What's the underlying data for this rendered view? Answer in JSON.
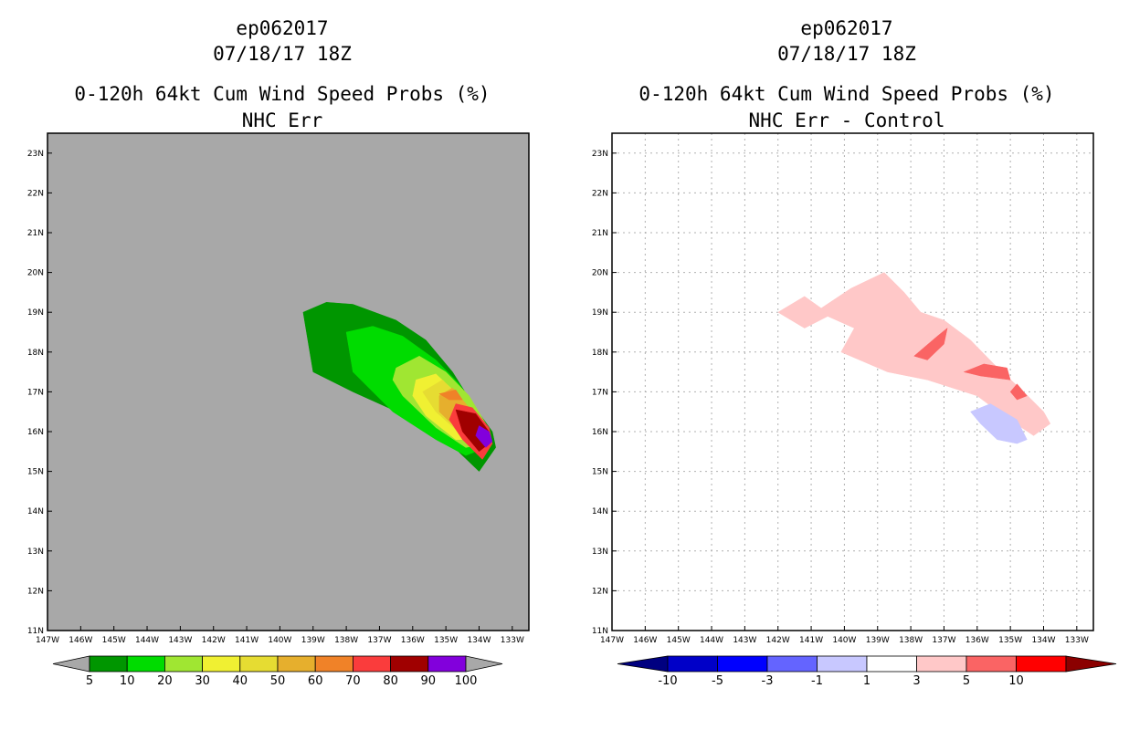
{
  "panels": [
    {
      "storm": "ep062017",
      "datetime": "07/18/17 18Z",
      "title": "0-120h 64kt Cum Wind Speed Probs (%)",
      "subtitle": "NHC Err"
    },
    {
      "storm": "ep062017",
      "datetime": "07/18/17 18Z",
      "title": "0-120h 64kt Cum Wind Speed Probs (%)",
      "subtitle": "NHC Err - Control"
    }
  ],
  "chart_data": [
    {
      "type": "filled-contour",
      "title": "0-120h 64kt Cum Wind Speed Probs (%)",
      "subtitle": "NHC Err",
      "background": "#a8a8a8",
      "grid": false,
      "xlim": [
        -147,
        -132.5
      ],
      "ylim": [
        11,
        23.5
      ],
      "x_ticks": [
        -147,
        -146,
        -145,
        -144,
        -143,
        -142,
        -141,
        -140,
        -139,
        -138,
        -137,
        -136,
        -135,
        -134,
        -133
      ],
      "x_tick_labels": [
        "147W",
        "146W",
        "145W",
        "144W",
        "143W",
        "142W",
        "141W",
        "140W",
        "139W",
        "138W",
        "137W",
        "136W",
        "135W",
        "134W",
        "133W"
      ],
      "y_ticks": [
        11,
        12,
        13,
        14,
        15,
        16,
        17,
        18,
        19,
        20,
        21,
        22,
        23
      ],
      "y_tick_labels": [
        "11N",
        "12N",
        "13N",
        "14N",
        "15N",
        "16N",
        "17N",
        "18N",
        "19N",
        "20N",
        "21N",
        "22N",
        "23N"
      ],
      "colorbar": {
        "labels": [
          "5",
          "10",
          "20",
          "30",
          "40",
          "50",
          "60",
          "70",
          "80",
          "90",
          "100"
        ],
        "colors": [
          "#009600",
          "#00dc00",
          "#a0e632",
          "#f0f032",
          "#e6dc32",
          "#e6af2d",
          "#f08228",
          "#fa3c3c",
          "#a00000",
          "#8200dc"
        ],
        "under_color": "#a8a8a8",
        "over_color": "#a8a8a8"
      },
      "contours": [
        {
          "level": 5,
          "color": "#009600",
          "lonlat": [
            [
              -139.3,
              19.0
            ],
            [
              -138.6,
              19.25
            ],
            [
              -137.8,
              19.2
            ],
            [
              -136.5,
              18.8
            ],
            [
              -135.6,
              18.3
            ],
            [
              -134.8,
              17.5
            ],
            [
              -134.2,
              16.7
            ],
            [
              -133.6,
              16.0
            ],
            [
              -133.5,
              15.6
            ],
            [
              -134.0,
              15.0
            ],
            [
              -135.0,
              15.8
            ],
            [
              -136.2,
              16.4
            ],
            [
              -137.8,
              17.0
            ],
            [
              -139.0,
              17.5
            ]
          ]
        },
        {
          "level": 10,
          "color": "#00dc00",
          "lonlat": [
            [
              -138.0,
              18.5
            ],
            [
              -137.2,
              18.65
            ],
            [
              -136.3,
              18.4
            ],
            [
              -135.3,
              17.8
            ],
            [
              -134.6,
              17.2
            ],
            [
              -134.1,
              16.6
            ],
            [
              -133.7,
              16.0
            ],
            [
              -133.8,
              15.6
            ],
            [
              -134.4,
              15.4
            ],
            [
              -135.3,
              15.8
            ],
            [
              -136.6,
              16.5
            ],
            [
              -137.8,
              17.5
            ]
          ]
        },
        {
          "level": 20,
          "color": "#a0e632",
          "lonlat": [
            [
              -136.5,
              17.6
            ],
            [
              -135.8,
              17.9
            ],
            [
              -135.0,
              17.5
            ],
            [
              -134.3,
              16.9
            ],
            [
              -133.8,
              16.2
            ],
            [
              -133.8,
              15.7
            ],
            [
              -134.4,
              15.6
            ],
            [
              -135.3,
              16.1
            ],
            [
              -136.3,
              16.9
            ],
            [
              -136.6,
              17.3
            ]
          ]
        },
        {
          "level": 30,
          "color": "#f0f032",
          "lonlat": [
            [
              -135.9,
              17.3
            ],
            [
              -135.3,
              17.45
            ],
            [
              -134.6,
              16.9
            ],
            [
              -134.0,
              16.2
            ],
            [
              -134.0,
              15.8
            ],
            [
              -134.7,
              15.8
            ],
            [
              -135.6,
              16.4
            ],
            [
              -136.0,
              16.9
            ]
          ]
        },
        {
          "level": 40,
          "color": "#e6dc32",
          "lonlat": [
            [
              -135.7,
              17.0
            ],
            [
              -135.1,
              17.3
            ],
            [
              -134.4,
              16.7
            ],
            [
              -134.1,
              16.1
            ],
            [
              -134.5,
              15.9
            ],
            [
              -135.3,
              16.5
            ]
          ]
        },
        {
          "level": 50,
          "color": "#e6af2d",
          "lonlat": [
            [
              -135.2,
              16.9
            ],
            [
              -134.8,
              17.1
            ],
            [
              -134.3,
              16.6
            ],
            [
              -134.2,
              16.1
            ],
            [
              -134.7,
              16.1
            ],
            [
              -135.2,
              16.5
            ]
          ]
        },
        {
          "level": 60,
          "color": "#f08228",
          "lonlat": [
            [
              -135.2,
              16.95
            ],
            [
              -134.7,
              17.05
            ],
            [
              -134.5,
              16.8
            ],
            [
              -134.9,
              16.8
            ]
          ]
        },
        {
          "level": 70,
          "color": "#fa3c3c",
          "lonlat": [
            [
              -134.7,
              16.7
            ],
            [
              -134.2,
              16.6
            ],
            [
              -133.7,
              16.1
            ],
            [
              -133.6,
              15.7
            ],
            [
              -133.9,
              15.3
            ],
            [
              -134.5,
              15.8
            ],
            [
              -134.9,
              16.3
            ]
          ]
        },
        {
          "level": 80,
          "color": "#a00000",
          "lonlat": [
            [
              -134.7,
              16.55
            ],
            [
              -134.1,
              16.45
            ],
            [
              -133.7,
              16.0
            ],
            [
              -133.7,
              15.7
            ],
            [
              -134.0,
              15.5
            ],
            [
              -134.5,
              16.0
            ]
          ]
        },
        {
          "level": 90,
          "color": "#8200dc",
          "lonlat": [
            [
              -134.0,
              16.15
            ],
            [
              -133.7,
              16.0
            ],
            [
              -133.6,
              15.75
            ],
            [
              -133.8,
              15.6
            ],
            [
              -134.1,
              15.9
            ]
          ]
        }
      ]
    },
    {
      "type": "filled-contour",
      "title": "0-120h 64kt Cum Wind Speed Probs (%)",
      "subtitle": "NHC Err - Control",
      "background": "#ffffff",
      "grid": true,
      "xlim": [
        -147,
        -132.5
      ],
      "ylim": [
        11,
        23.5
      ],
      "x_ticks": [
        -147,
        -146,
        -145,
        -144,
        -143,
        -142,
        -141,
        -140,
        -139,
        -138,
        -137,
        -136,
        -135,
        -134,
        -133
      ],
      "x_tick_labels": [
        "147W",
        "146W",
        "145W",
        "144W",
        "143W",
        "142W",
        "141W",
        "140W",
        "139W",
        "138W",
        "137W",
        "136W",
        "135W",
        "134W",
        "133W"
      ],
      "y_ticks": [
        11,
        12,
        13,
        14,
        15,
        16,
        17,
        18,
        19,
        20,
        21,
        22,
        23
      ],
      "y_tick_labels": [
        "11N",
        "12N",
        "13N",
        "14N",
        "15N",
        "16N",
        "17N",
        "18N",
        "19N",
        "20N",
        "21N",
        "22N",
        "23N"
      ],
      "colorbar": {
        "labels": [
          "-10",
          "-5",
          "-3",
          "-1",
          "1",
          "3",
          "5",
          "10"
        ],
        "colors": [
          "#0000c8",
          "#0000ff",
          "#6464ff",
          "#c8c8ff",
          "#ffffff",
          "#ffc8c8",
          "#fa6464",
          "#ff0000"
        ],
        "under_color": "#000080",
        "over_color": "#8b0000"
      },
      "contours": [
        {
          "level": 1,
          "color": "#ffc8c8",
          "lonlat": [
            [
              -142.0,
              19.0
            ],
            [
              -141.2,
              19.4
            ],
            [
              -140.7,
              19.1
            ],
            [
              -139.8,
              19.6
            ],
            [
              -138.8,
              20.0
            ],
            [
              -138.2,
              19.5
            ],
            [
              -137.7,
              19.0
            ],
            [
              -137.0,
              18.8
            ],
            [
              -136.2,
              18.3
            ],
            [
              -135.5,
              17.7
            ],
            [
              -134.6,
              17.0
            ],
            [
              -134.0,
              16.5
            ],
            [
              -133.8,
              16.2
            ],
            [
              -134.3,
              15.9
            ],
            [
              -135.2,
              16.4
            ],
            [
              -136.0,
              16.9
            ],
            [
              -137.5,
              17.3
            ],
            [
              -138.7,
              17.5
            ],
            [
              -140.1,
              18.0
            ],
            [
              -139.7,
              18.6
            ],
            [
              -140.5,
              18.9
            ],
            [
              -141.2,
              18.6
            ]
          ]
        },
        {
          "level": 3,
          "color": "#fa6464",
          "lonlat": [
            [
              -137.9,
              17.9
            ],
            [
              -137.2,
              18.4
            ],
            [
              -136.9,
              18.6
            ],
            [
              -137.0,
              18.2
            ],
            [
              -137.5,
              17.8
            ]
          ]
        },
        {
          "level": 3,
          "color": "#fa6464",
          "lonlat": [
            [
              -136.4,
              17.5
            ],
            [
              -135.8,
              17.7
            ],
            [
              -135.1,
              17.6
            ],
            [
              -135.0,
              17.3
            ],
            [
              -135.9,
              17.4
            ]
          ]
        },
        {
          "level": 3,
          "color": "#fa6464",
          "lonlat": [
            [
              -135.0,
              17.0
            ],
            [
              -134.8,
              17.2
            ],
            [
              -134.5,
              16.9
            ],
            [
              -134.8,
              16.8
            ]
          ]
        },
        {
          "level": -1,
          "color": "#c8c8ff",
          "lonlat": [
            [
              -136.2,
              16.5
            ],
            [
              -135.6,
              16.7
            ],
            [
              -134.8,
              16.3
            ],
            [
              -134.5,
              15.8
            ],
            [
              -134.8,
              15.7
            ],
            [
              -135.4,
              15.8
            ],
            [
              -135.9,
              16.2
            ]
          ]
        }
      ]
    }
  ]
}
